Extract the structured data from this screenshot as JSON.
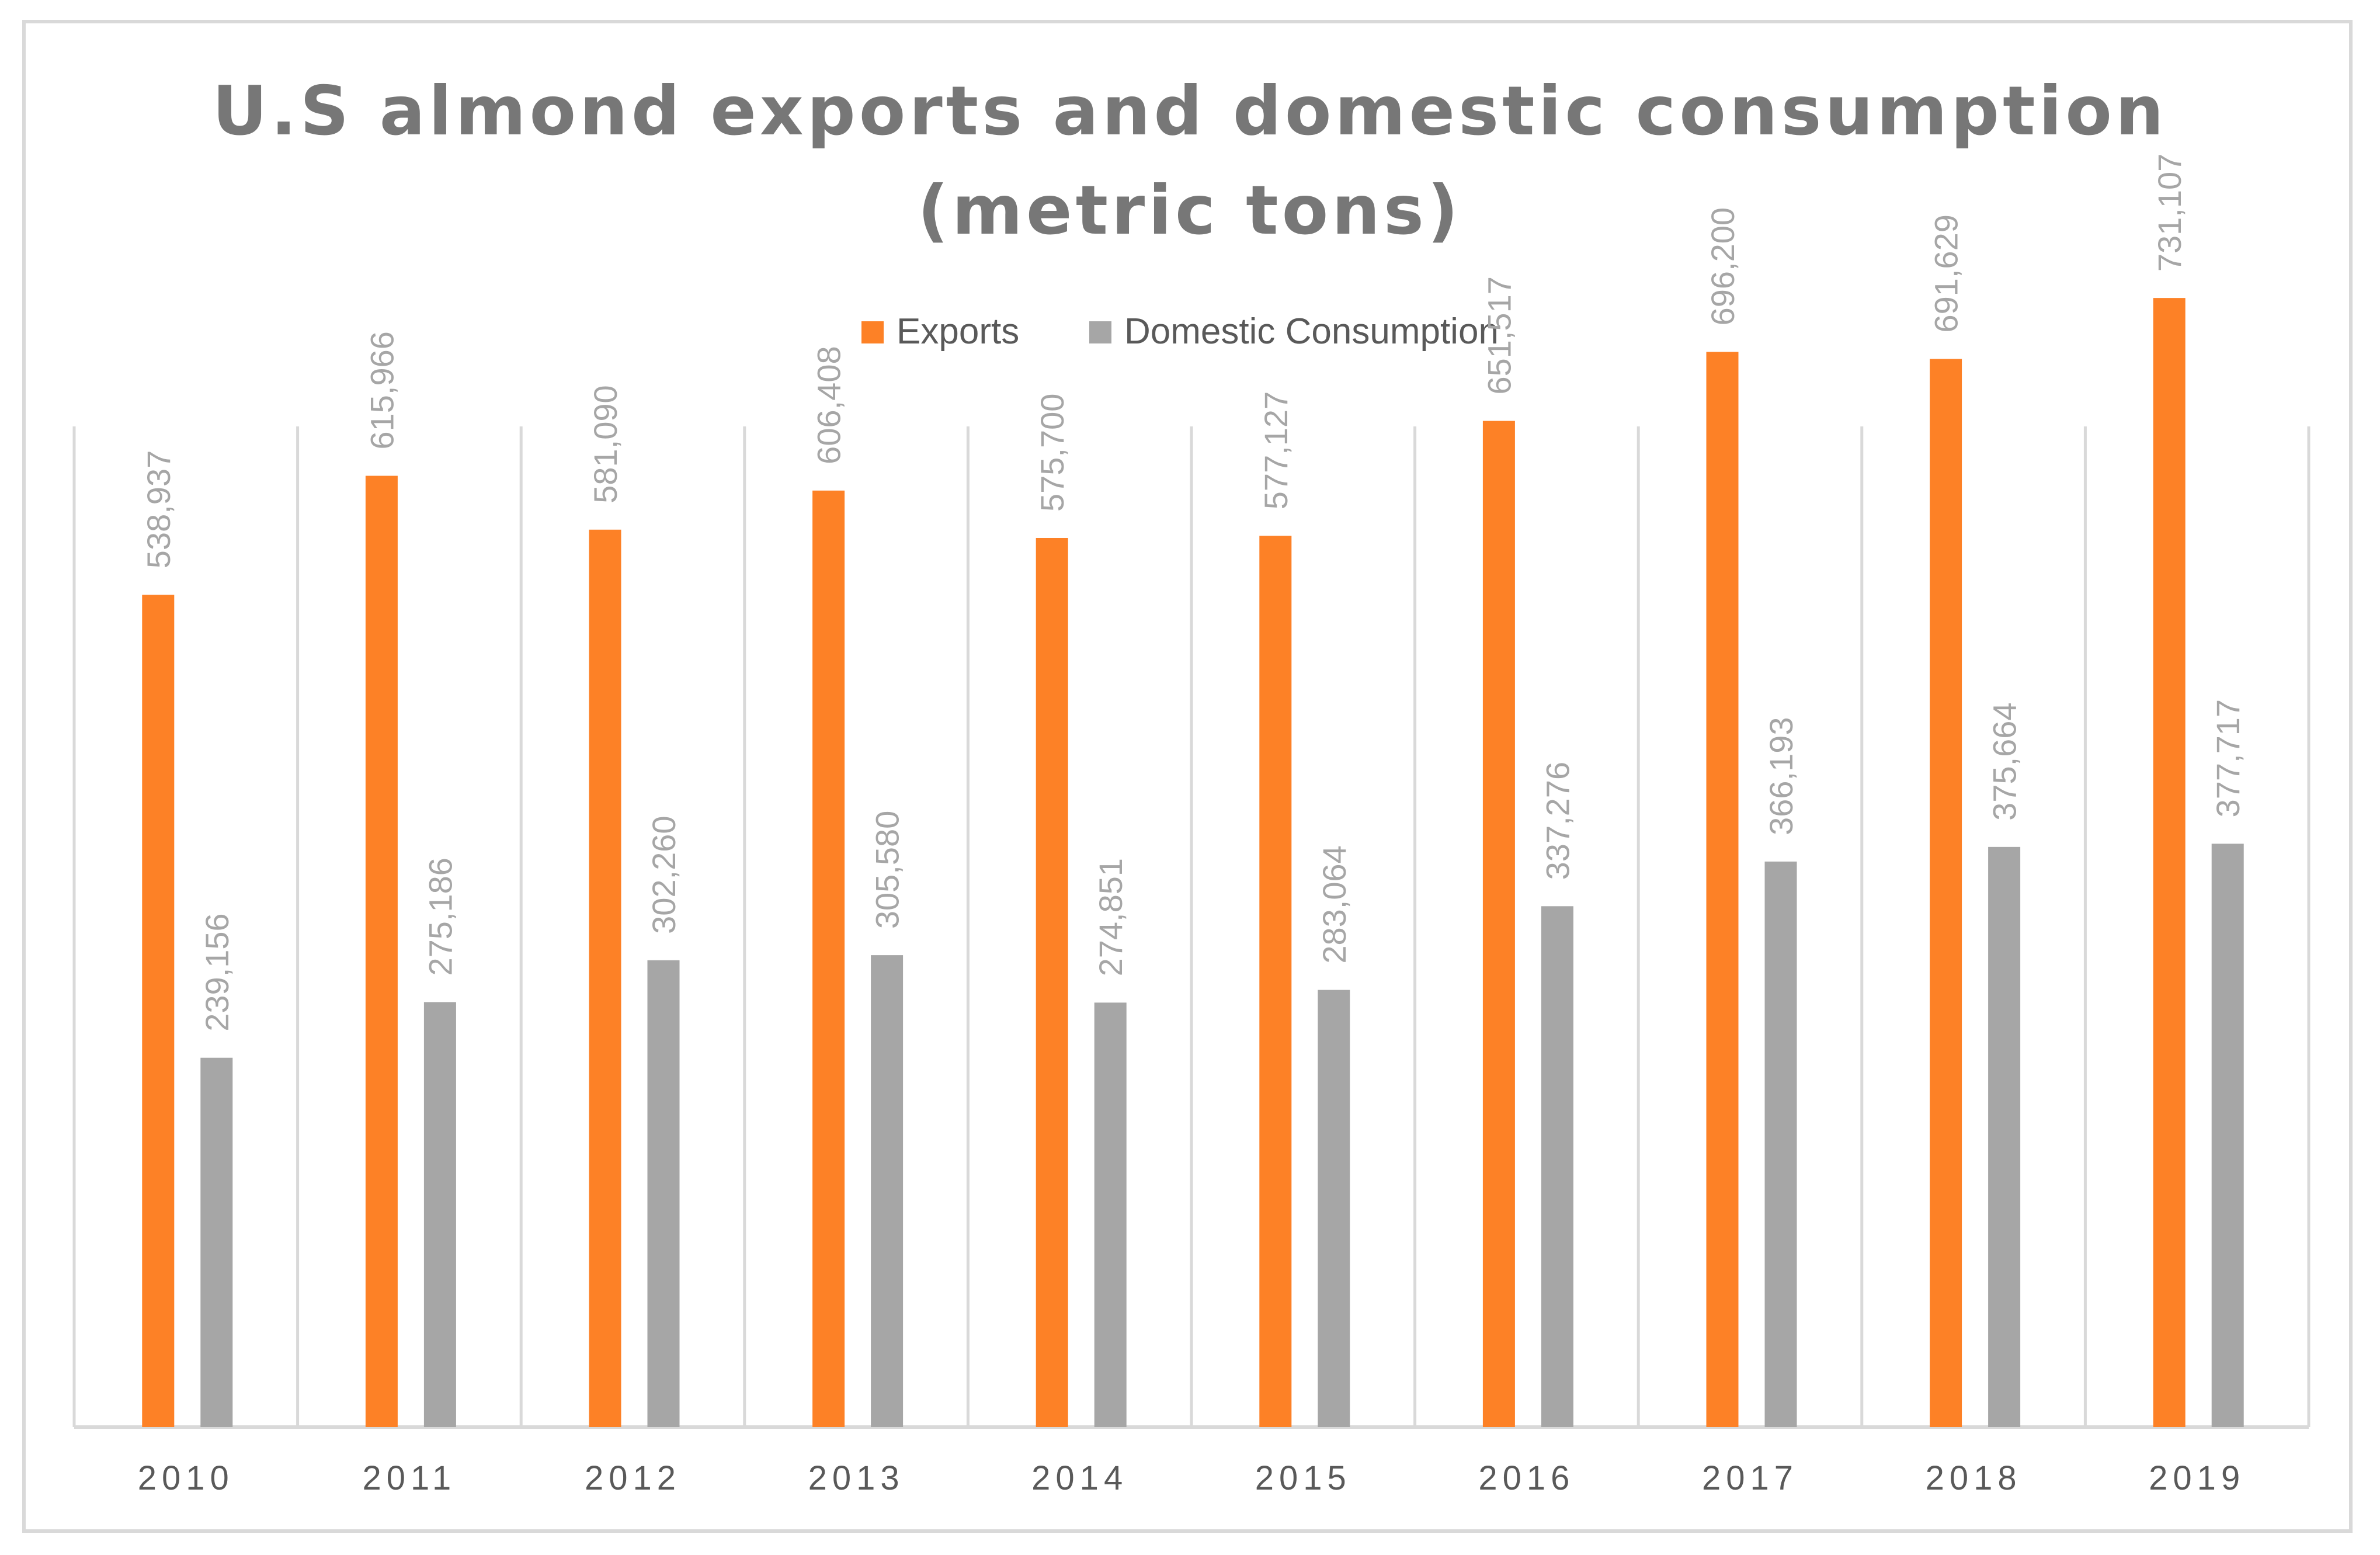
{
  "chart_data": {
    "type": "bar",
    "title_lines": [
      "U.S almond exports and domestic consumption",
      "(metric tons)"
    ],
    "xlabel": "",
    "ylabel": "",
    "categories": [
      "2010",
      "2011",
      "2012",
      "2013",
      "2014",
      "2015",
      "2016",
      "2017",
      "2018",
      "2019"
    ],
    "series": [
      {
        "name": "Exports",
        "color": "#fd8126",
        "values": [
          538937,
          615966,
          581090,
          606408,
          575700,
          577127,
          651517,
          696200,
          691629,
          731107
        ],
        "labels": [
          "538,937",
          "615,966",
          "581,090",
          "606,408",
          "575,700",
          "577,127",
          "651,517",
          "696,200",
          "691,629",
          "731,107"
        ]
      },
      {
        "name": "Domestic Consumption",
        "color": "#a6a6a6",
        "values": [
          239156,
          275186,
          302260,
          305580,
          274851,
          283064,
          337276,
          366193,
          375664,
          377717
        ],
        "labels": [
          "239,156",
          "275,186",
          "302,260",
          "305,580",
          "274,851",
          "283,064",
          "337,276",
          "366,193",
          "375,664",
          "377,717"
        ]
      }
    ],
    "ylim": [
      0,
      800000
    ],
    "gridlines": "vertical category separators",
    "legend_position": "top-center",
    "data_labels": "rotated above bars"
  }
}
